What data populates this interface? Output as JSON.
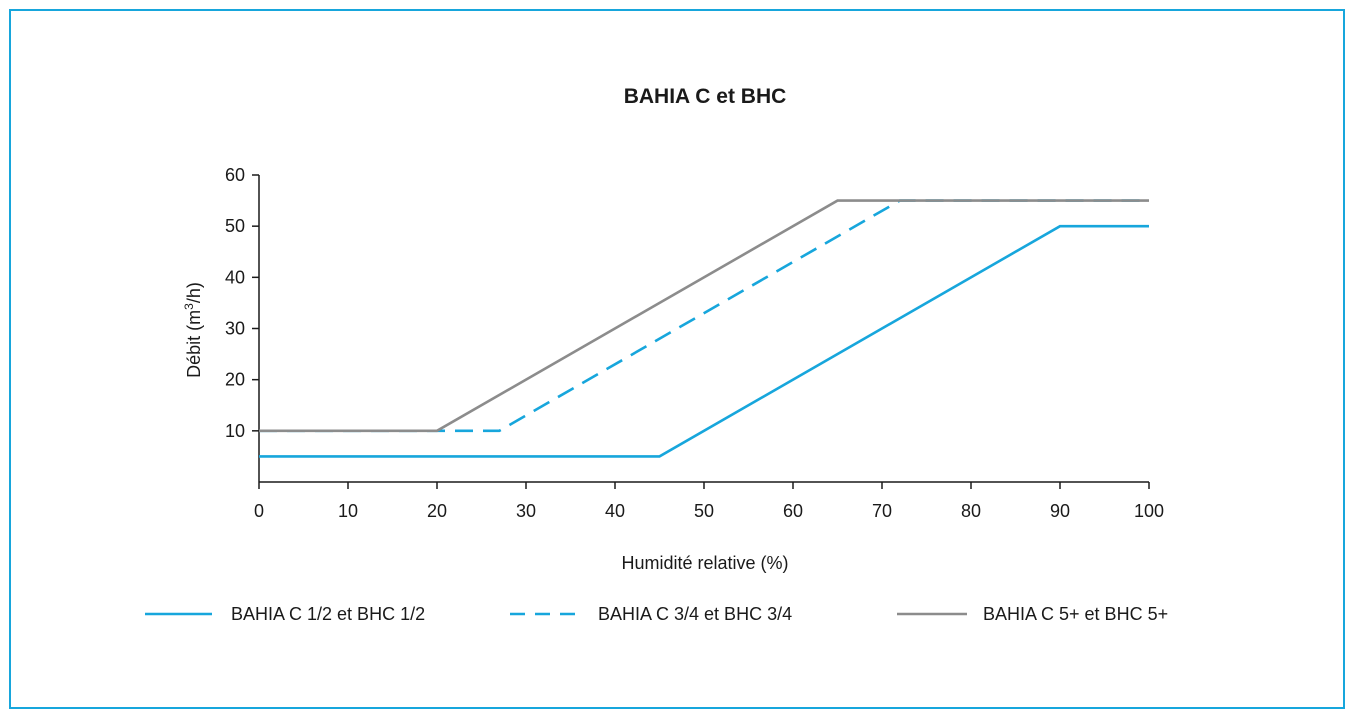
{
  "chart_data": {
    "type": "line",
    "title": "BAHIA C et BHC",
    "xlabel": "Humidité relative (%)",
    "ylabel_main": "Débit (m",
    "ylabel_sup": "3",
    "ylabel_end": "/h)",
    "xlim": [
      0,
      100
    ],
    "ylim": [
      0,
      60
    ],
    "x_ticks": [
      "0",
      "10",
      "20",
      "30",
      "40",
      "50",
      "60",
      "70",
      "80",
      "90",
      "100"
    ],
    "y_ticks": [
      "10",
      "20",
      "30",
      "40",
      "50",
      "60"
    ],
    "grid": false,
    "legend_position": "bottom",
    "series": [
      {
        "name": "BAHIA C 1/2 et BHC 1/2",
        "color": "#17a6dc",
        "style": "solid",
        "points": [
          [
            0,
            5
          ],
          [
            45,
            5
          ],
          [
            90,
            50
          ],
          [
            100,
            50
          ]
        ]
      },
      {
        "name": "BAHIA C 3/4 et BHC 3/4",
        "color": "#17a6dc",
        "style": "dashed",
        "points": [
          [
            0,
            10
          ],
          [
            27,
            10
          ],
          [
            72,
            55
          ],
          [
            100,
            55
          ]
        ]
      },
      {
        "name": "BAHIA C 5+ et BHC 5+",
        "color": "#8c8c8c",
        "style": "solid",
        "points": [
          [
            0,
            10
          ],
          [
            20,
            10
          ],
          [
            65,
            55
          ],
          [
            100,
            55
          ]
        ]
      }
    ]
  }
}
